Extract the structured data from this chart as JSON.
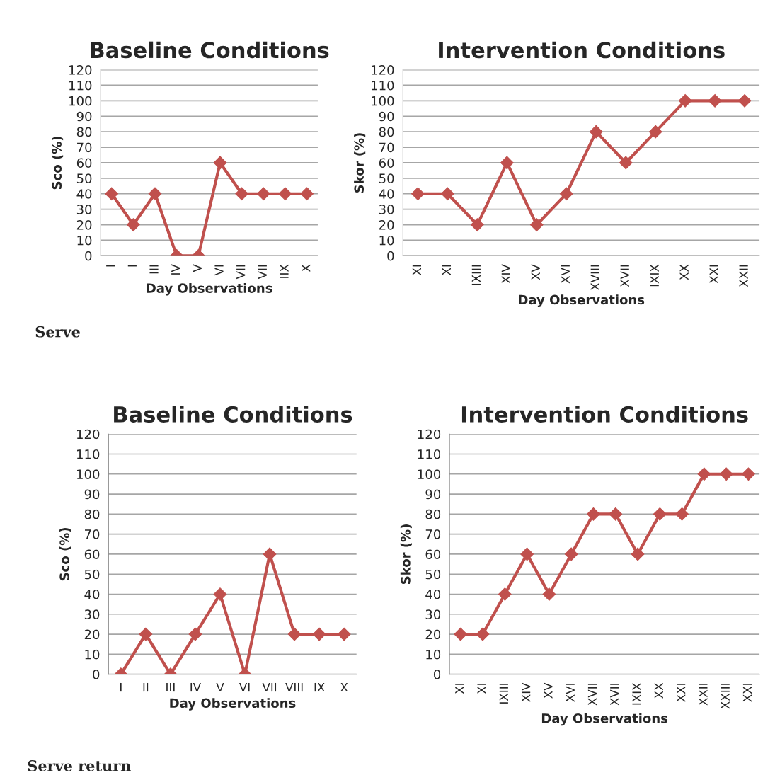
{
  "chart_data": [
    {
      "type": "line",
      "title": "Baseline Conditions",
      "xlabel": "Day Observations",
      "ylabel": "Sco (%)",
      "categories": [
        "I",
        "I",
        "III",
        "IV",
        "V",
        "VI",
        "VII",
        "VII",
        "IIX",
        "X"
      ],
      "values": [
        40,
        20,
        40,
        0,
        0,
        60,
        40,
        40,
        40,
        40
      ],
      "color": "#c0504d",
      "ylim": [
        0,
        120
      ],
      "yticks": [
        0,
        10,
        20,
        30,
        40,
        50,
        60,
        70,
        80,
        90,
        100,
        110,
        120
      ],
      "grid": "y",
      "marker": "diamond",
      "annotations": [
        "Serve"
      ]
    },
    {
      "type": "line",
      "title": "Intervention Conditions",
      "xlabel": "Day Observations",
      "ylabel": "Skor (%)",
      "categories": [
        "XI",
        "XI",
        "IXIII",
        "XIV",
        "XV",
        "XVI",
        "XVIII",
        "XVII",
        "IXIX",
        "XX",
        "XXI",
        "XXII"
      ],
      "values": [
        40,
        40,
        20,
        60,
        20,
        40,
        80,
        60,
        80,
        100,
        100,
        100
      ],
      "color": "#c0504d",
      "ylim": [
        0,
        120
      ],
      "yticks": [
        0,
        10,
        20,
        30,
        40,
        50,
        60,
        70,
        80,
        90,
        100,
        110,
        120
      ],
      "grid": "y",
      "marker": "diamond"
    },
    {
      "type": "line",
      "title": "Baseline Conditions",
      "xlabel": "Day Observations",
      "ylabel": "Sco (%)",
      "categories": [
        "I",
        "II",
        "III",
        "IV",
        "V",
        "VI",
        "VII",
        "VIII",
        "IX",
        "X"
      ],
      "values": [
        0,
        20,
        0,
        20,
        40,
        0,
        60,
        20,
        20,
        20
      ],
      "color": "#c0504d",
      "ylim": [
        0,
        120
      ],
      "yticks": [
        0,
        10,
        20,
        30,
        40,
        50,
        60,
        70,
        80,
        90,
        100,
        110,
        120
      ],
      "grid": "y",
      "marker": "diamond",
      "annotations": [
        "Serve return"
      ]
    },
    {
      "type": "line",
      "title": "Intervention Conditions",
      "xlabel": "Day Observations",
      "ylabel": "Skor (%)",
      "categories": [
        "XI",
        "XI",
        "IXIII",
        "XIV",
        "XV",
        "XVI",
        "XVII",
        "XVII",
        "IXIX",
        "XX",
        "XXI",
        "XXII",
        "XXIII",
        "XXI"
      ],
      "values": [
        20,
        20,
        40,
        60,
        40,
        60,
        80,
        80,
        60,
        80,
        80,
        100,
        100,
        100
      ],
      "color": "#c0504d",
      "ylim": [
        0,
        120
      ],
      "yticks": [
        0,
        10,
        20,
        30,
        40,
        50,
        60,
        70,
        80,
        90,
        100,
        110,
        120
      ],
      "grid": "y",
      "marker": "diamond"
    }
  ]
}
